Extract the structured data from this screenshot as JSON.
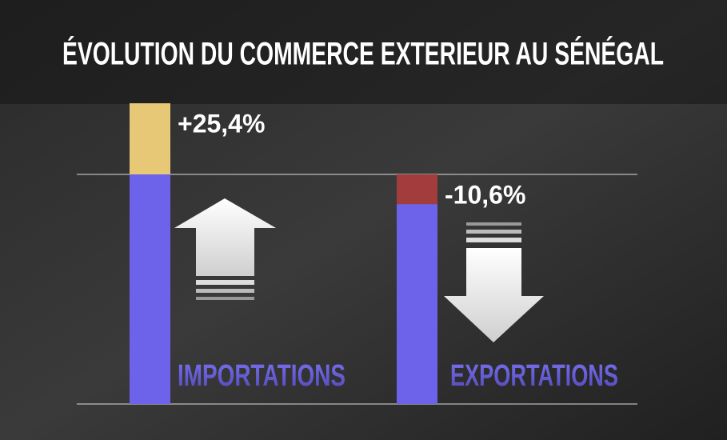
{
  "chart_data": {
    "type": "bar",
    "title": "ÉVOLUTION DU COMMERCE EXTERIEUR AU SÉNÉGAL",
    "categories": [
      "IMPORTATIONS",
      "EXPORTATIONS"
    ],
    "values": [
      25.4,
      -10.6
    ],
    "value_labels": [
      "+25,4%",
      "-10,6%"
    ],
    "base_color": "#6c63ea",
    "colors": [
      "#e6c877",
      "#a33c3c"
    ]
  }
}
